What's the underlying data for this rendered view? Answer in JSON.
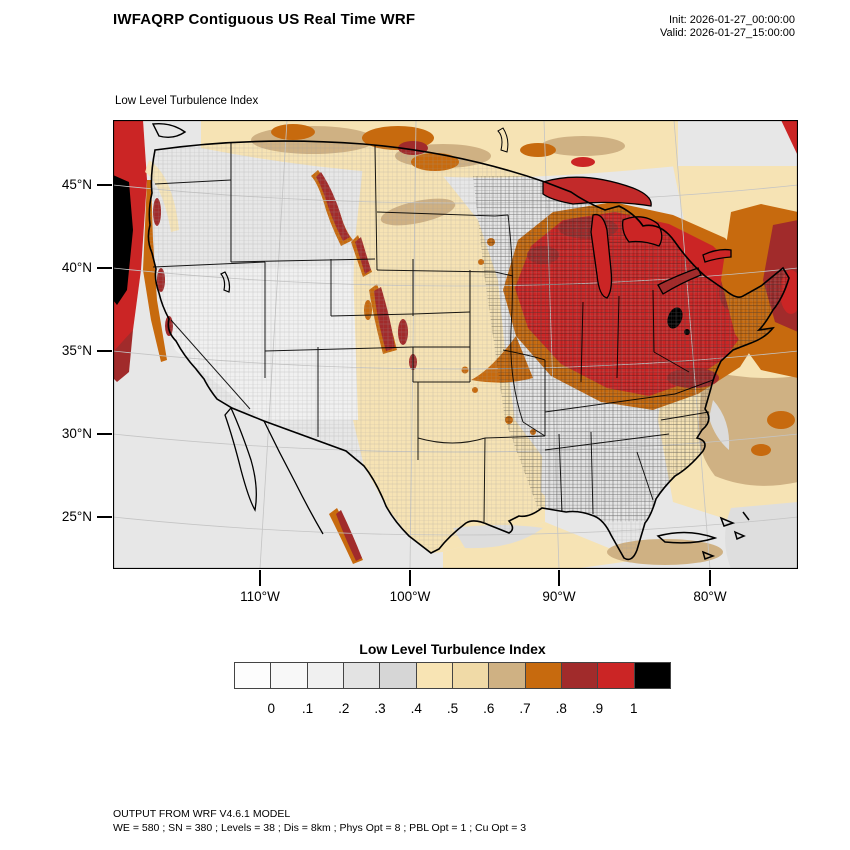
{
  "header": {
    "title": "IWFAQRP Contiguous US Real Time WRF",
    "init_label": "Init: 2026-01-27_00:00:00",
    "valid_label": "Valid: 2026-01-27_15:00:00"
  },
  "map": {
    "field_label": "Low Level Turbulence Index",
    "lat_ticks": [
      "45°N",
      "40°N",
      "35°N",
      "30°N",
      "25°N"
    ],
    "lon_ticks": [
      "110°W",
      "100°W",
      "90°W",
      "80°W"
    ]
  },
  "colorbar": {
    "title": "Low Level Turbulence Index",
    "tick_labels": [
      "0",
      ".1",
      ".2",
      ".3",
      ".4",
      ".5",
      ".6",
      ".7",
      ".8",
      ".9",
      "1"
    ],
    "colors": [
      "#FDFDFD",
      "#F8F8F8",
      "#F0F0F0",
      "#E3E3E3",
      "#D6D6D6",
      "#F8E4B4",
      "#F0DAA7",
      "#CFB183",
      "#C76A0E",
      "#A12B2B",
      "#CB2525",
      "#000000"
    ]
  },
  "field_colors": {
    "ocean_gray": "#E7E7E7",
    "land_gray": "#F1F1F1",
    "cream": "#F6E3B4",
    "tan": "#CFB183",
    "orange": "#C76A0E",
    "dark_red": "#A12B2B",
    "red": "#CB2525",
    "black": "#000000"
  },
  "footer": {
    "line1": "OUTPUT FROM WRF V4.6.1 MODEL",
    "line2": "WE = 580 ; SN = 380 ; Levels = 38 ; Dis = 8km ; Phys Opt = 8 ; PBL Opt = 1 ; Cu Opt = 3"
  }
}
